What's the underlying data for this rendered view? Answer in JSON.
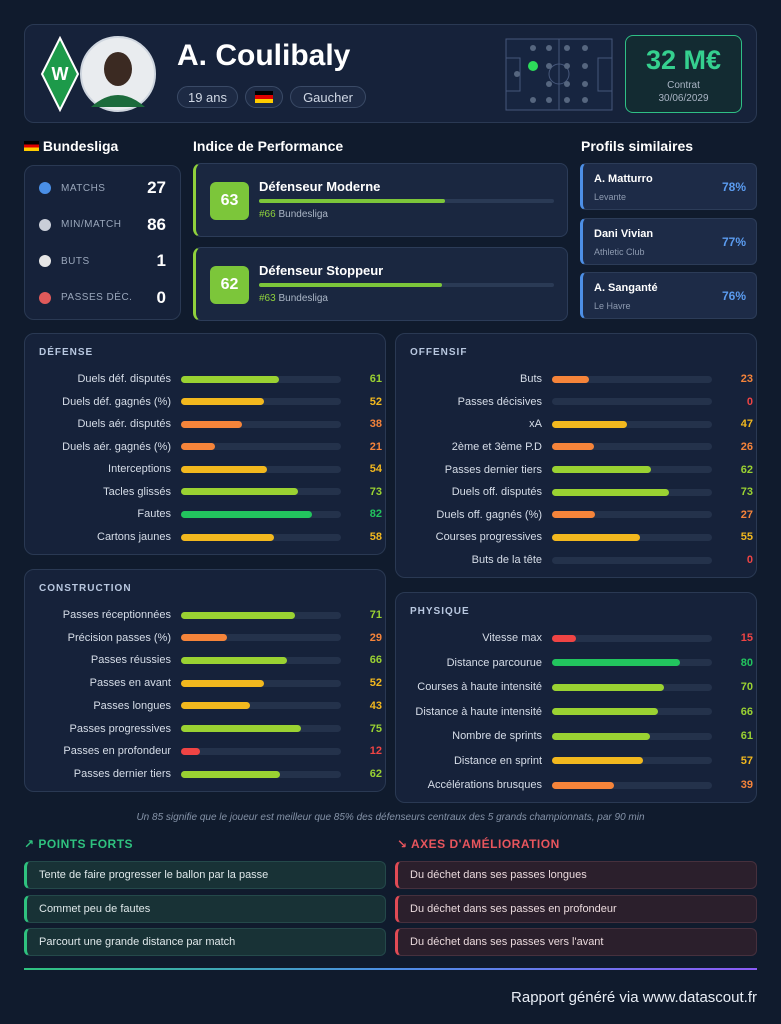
{
  "header": {
    "name": "A. Coulibaly",
    "age": "19 ans",
    "foot": "Gaucher",
    "market_value": "32 M€",
    "contract_label": "Contrat",
    "contract_end": "30/06/2029"
  },
  "league": {
    "name": "Bundesliga",
    "stats": [
      {
        "label": "MATCHS",
        "value": 27
      },
      {
        "label": "MIN/MATCH",
        "value": 86
      },
      {
        "label": "BUTS",
        "value": 1
      },
      {
        "label": "PASSES DÉC.",
        "value": 0
      }
    ]
  },
  "performance": {
    "title": "Indice de Performance",
    "items": [
      {
        "score": 63,
        "role": "Défenseur Moderne",
        "rank": "#66",
        "league": "Bundesliga"
      },
      {
        "score": 62,
        "role": "Défenseur Stoppeur",
        "rank": "#63",
        "league": "Bundesliga"
      }
    ]
  },
  "similar": {
    "title": "Profils similaires",
    "items": [
      {
        "name": "A. Matturro",
        "club": "Levante",
        "similarity": "78%"
      },
      {
        "name": "Dani Vivian",
        "club": "Athletic Club",
        "similarity": "77%"
      },
      {
        "name": "A. Sanganté",
        "club": "Le Havre",
        "similarity": "76%"
      }
    ]
  },
  "sections": [
    {
      "title": "DÉFENSE",
      "rows": [
        {
          "label": "Duels déf. disputés",
          "value": 61
        },
        {
          "label": "Duels déf. gagnés (%)",
          "value": 52
        },
        {
          "label": "Duels aér. disputés",
          "value": 38
        },
        {
          "label": "Duels aér. gagnés (%)",
          "value": 21
        },
        {
          "label": "Interceptions",
          "value": 54
        },
        {
          "label": "Tacles glissés",
          "value": 73
        },
        {
          "label": "Fautes",
          "value": 82
        },
        {
          "label": "Cartons jaunes",
          "value": 58
        }
      ]
    },
    {
      "title": "OFFENSIF",
      "rows": [
        {
          "label": "Buts",
          "value": 23
        },
        {
          "label": "Passes décisives",
          "value": 0
        },
        {
          "label": "xA",
          "value": 47
        },
        {
          "label": "2ème et 3ème P.D",
          "value": 26
        },
        {
          "label": "Passes dernier tiers",
          "value": 62
        },
        {
          "label": "Duels off. disputés",
          "value": 73
        },
        {
          "label": "Duels off. gagnés (%)",
          "value": 27
        },
        {
          "label": "Courses progressives",
          "value": 55
        },
        {
          "label": "Buts de la tête",
          "value": 0
        }
      ]
    },
    {
      "title": "CONSTRUCTION",
      "rows": [
        {
          "label": "Passes réceptionnées",
          "value": 71
        },
        {
          "label": "Précision passes (%)",
          "value": 29
        },
        {
          "label": "Passes réussies",
          "value": 66
        },
        {
          "label": "Passes en avant",
          "value": 52
        },
        {
          "label": "Passes longues",
          "value": 43
        },
        {
          "label": "Passes progressives",
          "value": 75
        },
        {
          "label": "Passes en profondeur",
          "value": 12
        },
        {
          "label": "Passes dernier tiers",
          "value": 62
        }
      ]
    },
    {
      "title": "PHYSIQUE",
      "rows": [
        {
          "label": "Vitesse max",
          "value": 15
        },
        {
          "label": "Distance parcourue",
          "value": 80
        },
        {
          "label": "Courses à haute intensité",
          "value": 70
        },
        {
          "label": "Distance à haute intensité",
          "value": 66
        },
        {
          "label": "Nombre de sprints",
          "value": 61
        },
        {
          "label": "Distance en sprint",
          "value": 57
        },
        {
          "label": "Accélérations brusques",
          "value": 39
        }
      ]
    }
  ],
  "footnote": "Un 85 signifie que le joueur est meilleur que 85% des défenseurs centraux des 5 grands championnats, par 90 min",
  "strengths": {
    "title": "POINTS FORTS",
    "items": [
      "Tente de faire progresser le ballon par la passe",
      "Commet peu de fautes",
      "Parcourt une grande distance par match"
    ]
  },
  "improvements": {
    "title": "AXES D'AMÉLIORATION",
    "items": [
      "Du déchet dans ses passes longues",
      "Du déchet dans ses passes en profondeur",
      "Du déchet dans ses passes vers l'avant"
    ]
  },
  "footer": "Rapport généré via www.datascout.fr"
}
